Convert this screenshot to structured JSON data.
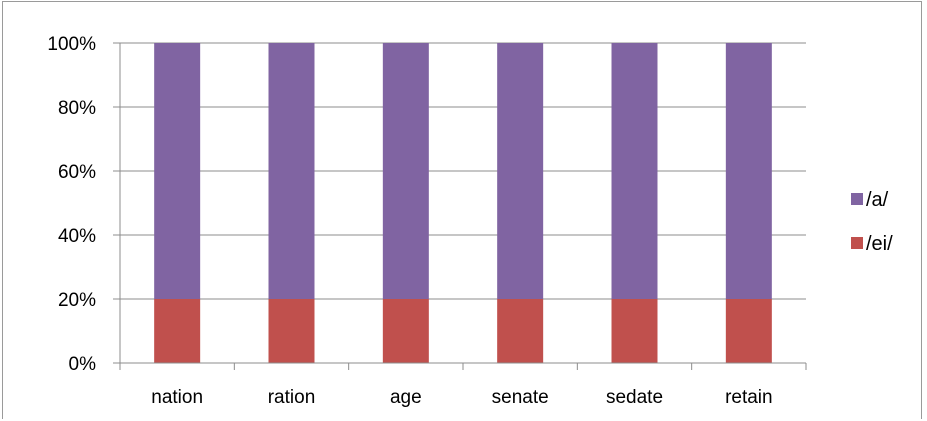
{
  "chart_data": {
    "type": "bar",
    "stacked": true,
    "percent_stacked": true,
    "categories": [
      "nation",
      "ration",
      "age",
      "senate",
      "sedate",
      "retain"
    ],
    "series": [
      {
        "name": "/ei/",
        "values": [
          20,
          20,
          20,
          20,
          20,
          20
        ],
        "color": "#c0504d"
      },
      {
        "name": "/a/",
        "values": [
          80,
          80,
          80,
          80,
          80,
          80
        ],
        "color": "#8064a2"
      }
    ],
    "y_ticks": [
      "0%",
      "20%",
      "40%",
      "60%",
      "80%",
      "100%"
    ],
    "ylim": [
      0,
      100
    ],
    "grid": true,
    "legend_position": "right",
    "legend_order": [
      "/a/",
      "/ei/"
    ]
  }
}
